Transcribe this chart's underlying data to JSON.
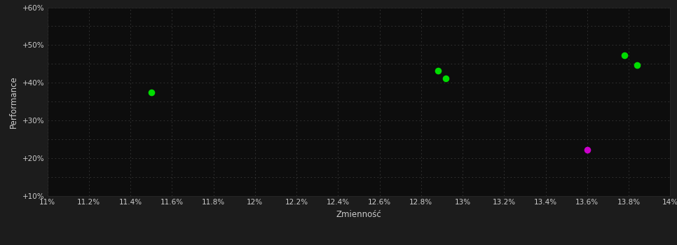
{
  "background_color": "#1c1c1c",
  "plot_bg_color": "#0d0d0d",
  "grid_color": "#3a3a3a",
  "text_color": "#cccccc",
  "xlabel": "Zmienność",
  "ylabel": "Performance",
  "xlim": [
    0.11,
    0.14
  ],
  "ylim": [
    0.1,
    0.6
  ],
  "xtick_step": 0.002,
  "points_green": [
    [
      0.115,
      0.375
    ],
    [
      0.1288,
      0.432
    ],
    [
      0.1292,
      0.411
    ],
    [
      0.1378,
      0.472
    ],
    [
      0.1384,
      0.447
    ]
  ],
  "points_magenta": [
    [
      0.136,
      0.222
    ]
  ],
  "point_size": 35,
  "green_color": "#00dd00",
  "magenta_color": "#cc00cc"
}
